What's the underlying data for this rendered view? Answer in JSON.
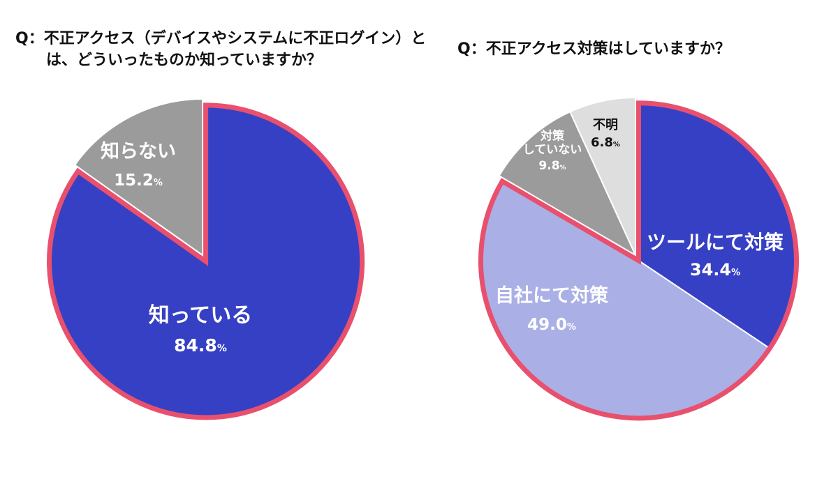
{
  "chart_data": [
    {
      "type": "pie",
      "title": "Q：不正アクセス（デバイスやシステムに不正ログイン）とは、どういったものか知っていますか？",
      "slices": [
        {
          "label": "知っている",
          "value": 84.8,
          "value_text": "84.8",
          "unit": "%",
          "color": "#3640c4",
          "label_color": "#ffffff",
          "highlighted": true
        },
        {
          "label": "知らない",
          "value": 15.2,
          "value_text": "15.2",
          "unit": "%",
          "color": "#9b9b9b",
          "label_color": "#ffffff",
          "highlighted": false
        }
      ],
      "start_angle_deg": 0,
      "direction": "clockwise",
      "highlight_color": "#e8506e"
    },
    {
      "type": "pie",
      "title": "Q：不正アクセス対策はしていますか？",
      "slices": [
        {
          "label": "ツールにて対策",
          "value": 34.4,
          "value_text": "34.4",
          "unit": "%",
          "color": "#3640c4",
          "label_color": "#ffffff",
          "highlighted": true
        },
        {
          "label": "自社にて対策",
          "value": 49.0,
          "value_text": "49.0",
          "unit": "%",
          "color": "#aab0e6",
          "label_color": "#ffffff",
          "highlighted": true
        },
        {
          "label": "対策していない",
          "value": 9.8,
          "value_text": "9.8",
          "unit": "%",
          "color": "#9b9b9b",
          "label_color": "#ffffff",
          "highlighted": false
        },
        {
          "label": "不明",
          "value": 6.8,
          "value_text": "6.8",
          "unit": "%",
          "color": "#dedede",
          "label_color": "#111111",
          "highlighted": false
        }
      ],
      "start_angle_deg": 0,
      "direction": "clockwise",
      "highlight_color": "#e8506e"
    }
  ]
}
